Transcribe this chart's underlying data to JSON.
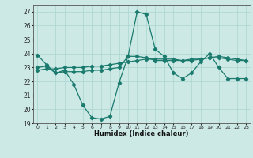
{
  "xlabel": "Humidex (Indice chaleur)",
  "ylabel": "",
  "xlim": [
    -0.5,
    23.5
  ],
  "ylim": [
    19,
    27.5
  ],
  "yticks": [
    19,
    20,
    21,
    22,
    23,
    24,
    25,
    26,
    27
  ],
  "xticks": [
    0,
    1,
    2,
    3,
    4,
    5,
    6,
    7,
    8,
    9,
    10,
    11,
    12,
    13,
    14,
    15,
    16,
    17,
    18,
    19,
    20,
    21,
    22,
    23
  ],
  "bg_color": "#cce9e5",
  "grid_color": "#aad4cf",
  "line_color": "#1a7a6e",
  "line1_x": [
    0,
    1,
    2,
    3,
    4,
    5,
    6,
    7,
    8,
    9,
    10,
    11,
    12,
    13,
    14,
    15,
    16,
    17,
    18,
    19,
    20,
    21,
    22,
    23
  ],
  "line1_y": [
    23.9,
    23.2,
    22.6,
    22.8,
    21.8,
    20.3,
    19.4,
    19.3,
    19.5,
    21.9,
    23.8,
    27.0,
    26.8,
    24.3,
    23.8,
    22.6,
    22.2,
    22.6,
    23.4,
    24.0,
    23.0,
    22.2,
    22.2,
    22.2
  ],
  "line2_x": [
    0,
    1,
    2,
    3,
    4,
    5,
    6,
    7,
    8,
    9,
    10,
    11,
    12,
    13,
    14,
    15,
    16,
    17,
    18,
    19,
    20,
    21,
    22,
    23
  ],
  "line2_y": [
    23.0,
    23.1,
    22.6,
    22.7,
    22.7,
    22.7,
    22.8,
    22.8,
    22.9,
    23.0,
    23.8,
    23.8,
    23.7,
    23.5,
    23.5,
    23.5,
    23.5,
    23.6,
    23.6,
    23.7,
    23.7,
    23.6,
    23.5,
    23.5
  ],
  "line3_x": [
    0,
    1,
    2,
    3,
    4,
    5,
    6,
    7,
    8,
    9,
    10,
    11,
    12,
    13,
    14,
    15,
    16,
    17,
    18,
    19,
    20,
    21,
    22,
    23
  ],
  "line3_y": [
    22.8,
    22.9,
    22.9,
    23.0,
    23.0,
    23.0,
    23.1,
    23.1,
    23.2,
    23.3,
    23.4,
    23.5,
    23.6,
    23.6,
    23.6,
    23.6,
    23.5,
    23.5,
    23.6,
    23.7,
    23.8,
    23.7,
    23.6,
    23.5
  ]
}
